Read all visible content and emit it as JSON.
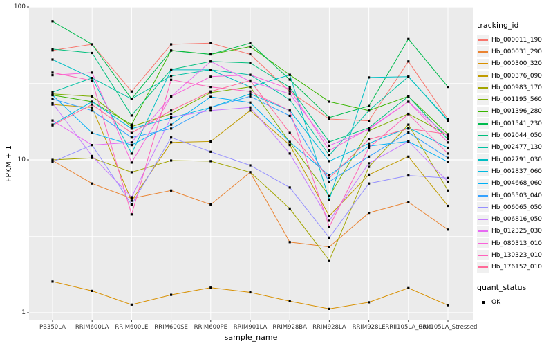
{
  "figure": {
    "y_axis_title": "FPKM + 1",
    "x_axis_title": "sample_name",
    "legend_title": "tracking_id",
    "legend2_title": "quant_status",
    "legend2_items": [
      "OK"
    ],
    "panel_bg": "#ebebeb",
    "grid_color": "#ffffff",
    "point_color": "#000000"
  },
  "chart_data": {
    "type": "line",
    "title": "",
    "xlabel": "sample_name",
    "ylabel": "FPKM + 1",
    "y_scale": "log10",
    "y_ticks": [
      1,
      10,
      100
    ],
    "y_minor_ticks": [
      3.162,
      31.62
    ],
    "ylim": [
      0.9,
      100
    ],
    "legend_position": "right",
    "grid": true,
    "point_shape": "filled-square",
    "quant_status": "OK",
    "categories": [
      "PB350LA",
      "RRIM600LA",
      "RRIM600LE",
      "RRIM600SE",
      "RRIM600PE",
      "RRIM901LA",
      "RRIM928BA",
      "RRIM928LA",
      "RRIM928LE",
      "RRII105LA_Cold",
      "RRII105LA_Stressed"
    ],
    "series": [
      {
        "name": "Hb_000011_190",
        "color": "#F8766D",
        "values": [
          52,
          57,
          28,
          57,
          58,
          49,
          28,
          18.5,
          18,
          44,
          18.5
        ]
      },
      {
        "name": "Hb_000031_290",
        "color": "#EA8331",
        "values": [
          9.9,
          7.0,
          5.6,
          6.3,
          5.1,
          8.3,
          2.9,
          2.7,
          4.5,
          5.3,
          3.5
        ]
      },
      {
        "name": "Hb_000300_320",
        "color": "#D89000",
        "values": [
          1.6,
          1.39,
          1.13,
          1.31,
          1.46,
          1.36,
          1.19,
          1.06,
          1.17,
          1.45,
          1.12
        ]
      },
      {
        "name": "Hb_000376_090",
        "color": "#C09B00",
        "values": [
          23,
          22,
          5.4,
          13,
          13.2,
          21,
          12.5,
          4.3,
          8.0,
          10.5,
          5.0
        ]
      },
      {
        "name": "Hb_000983_170",
        "color": "#A3A500",
        "values": [
          10.0,
          10.3,
          8.3,
          9.9,
          9.8,
          8.3,
          4.8,
          2.2,
          9.0,
          17,
          6.3
        ]
      },
      {
        "name": "Hb_001195_560",
        "color": "#7CAE00",
        "values": [
          27,
          26,
          16.5,
          20,
          27.5,
          30,
          13,
          5.8,
          15.5,
          20,
          14.5
        ]
      },
      {
        "name": "Hb_001396_280",
        "color": "#39B600",
        "values": [
          26.5,
          24,
          17,
          52,
          49,
          55,
          36,
          24,
          21,
          26,
          14.7
        ]
      },
      {
        "name": "Hb_001541_230",
        "color": "#00BB4E",
        "values": [
          80.5,
          57,
          25,
          51.8,
          49,
          58,
          33.5,
          18.9,
          22.5,
          61.7,
          30
        ]
      },
      {
        "name": "Hb_002044_050",
        "color": "#00BF7D",
        "values": [
          53,
          50,
          19.5,
          39,
          44,
          43,
          29.8,
          13.1,
          16.2,
          26,
          13.6
        ]
      },
      {
        "name": "Hb_002477_130",
        "color": "#00C1A3",
        "values": [
          27.7,
          34.3,
          25,
          35.4,
          38.8,
          36,
          24.7,
          10.7,
          21,
          35,
          18
        ]
      },
      {
        "name": "Hb_002791_030",
        "color": "#00BFC4",
        "values": [
          45.3,
          34.3,
          11,
          38.8,
          38.8,
          30,
          36,
          5.5,
          34.6,
          35,
          18.2
        ]
      },
      {
        "name": "Hb_002837_060",
        "color": "#00BAE0",
        "values": [
          17,
          24,
          16,
          18.8,
          22,
          27,
          21,
          9.8,
          12.8,
          16.2,
          12
        ]
      },
      {
        "name": "Hb_004668_060",
        "color": "#00B0F6",
        "values": [
          26.5,
          15,
          12.5,
          17,
          25.8,
          23.7,
          13.1,
          7.9,
          12.3,
          13.2,
          9.7
        ]
      },
      {
        "name": "Hb_005503_040",
        "color": "#35A2FF",
        "values": [
          25,
          21,
          14,
          16,
          22,
          26,
          19.4,
          7.2,
          10.5,
          15.1,
          10.3
        ]
      },
      {
        "name": "Hb_006065_050",
        "color": "#9590FF",
        "values": [
          9.7,
          12.5,
          5.1,
          14,
          11.3,
          9.2,
          6.6,
          3.1,
          7.0,
          7.9,
          7.6
        ]
      },
      {
        "name": "Hb_006816_050",
        "color": "#C77CFF",
        "values": [
          23.5,
          10.6,
          5.7,
          19,
          21,
          22,
          11,
          4.0,
          9.5,
          13.2,
          7.2
        ]
      },
      {
        "name": "Hb_012325_030",
        "color": "#E76BF3",
        "values": [
          18.1,
          12.5,
          13,
          26,
          44,
          32.6,
          27,
          12.4,
          15.8,
          24,
          14.2
        ]
      },
      {
        "name": "Hb_080313_010",
        "color": "#FA62DB",
        "values": [
          35.8,
          37.2,
          9.6,
          26,
          35,
          36,
          29,
          11.5,
          16,
          24,
          13
        ]
      },
      {
        "name": "Hb_130323_010",
        "color": "#FF62BC",
        "values": [
          37.2,
          33,
          4.4,
          33.4,
          30,
          28,
          21,
          3.65,
          12,
          19.9,
          11
        ]
      },
      {
        "name": "Hb_176152_010",
        "color": "#FF6A98",
        "values": [
          16.8,
          23,
          15,
          21,
          28,
          33,
          15,
          7.6,
          13.6,
          16,
          14.7
        ]
      }
    ]
  }
}
